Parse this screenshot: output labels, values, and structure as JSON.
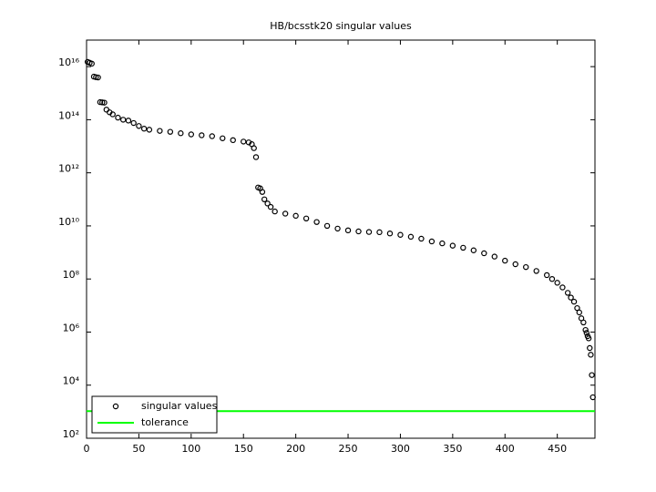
{
  "chart_data": {
    "type": "scatter",
    "title": "HB/bcsstk20 singular values",
    "yscale": "log",
    "xlim": [
      0,
      486
    ],
    "ylim": [
      100,
      1e+17
    ],
    "xticks": [
      0,
      50,
      100,
      150,
      200,
      250,
      300,
      350,
      400,
      450
    ],
    "yticks": [
      {
        "value": 100,
        "label": "10²"
      },
      {
        "value": 10000,
        "label": "10⁴"
      },
      {
        "value": 1000000,
        "label": "10⁶"
      },
      {
        "value": 100000000,
        "label": "10⁸"
      },
      {
        "value": 10000000000,
        "label": "10¹⁰"
      },
      {
        "value": 1000000000000,
        "label": "10¹²"
      },
      {
        "value": 100000000000000,
        "label": "10¹⁴"
      },
      {
        "value": 10000000000000000,
        "label": "10¹⁶"
      }
    ],
    "legend": "lower left",
    "x": [
      1,
      3,
      5,
      7,
      9,
      11,
      13,
      15,
      17,
      19,
      22,
      25,
      30,
      35,
      40,
      45,
      50,
      55,
      60,
      70,
      80,
      90,
      100,
      110,
      120,
      130,
      140,
      150,
      155,
      158,
      160,
      162,
      164,
      166,
      168,
      170,
      173,
      176,
      180,
      190,
      200,
      210,
      220,
      230,
      240,
      250,
      260,
      270,
      280,
      290,
      300,
      310,
      320,
      330,
      340,
      350,
      360,
      370,
      380,
      390,
      400,
      410,
      420,
      430,
      440,
      445,
      450,
      455,
      460,
      463,
      466,
      469,
      471,
      473,
      475,
      477,
      478,
      479,
      480,
      481,
      482,
      483,
      484
    ],
    "series": [
      {
        "name": "singular values",
        "color": "#000000",
        "values": [
          1.5e+16,
          1.4e+16,
          1.3e+16,
          4200000000000000.0,
          4000000000000000.0,
          3900000000000000.0,
          460000000000000.0,
          450000000000000.0,
          440000000000000.0,
          240000000000000.0,
          190000000000000.0,
          160000000000000.0,
          120000000000000.0,
          100000000000000.0,
          93000000000000.0,
          75000000000000.0,
          58000000000000.0,
          46000000000000.0,
          42000000000000.0,
          38000000000000.0,
          35000000000000.0,
          31000000000000.0,
          28000000000000.0,
          26000000000000.0,
          24000000000000.0,
          20000000000000.0,
          17000000000000.0,
          15000000000000.0,
          14000000000000.0,
          12000000000000.0,
          8500000000000.0,
          3900000000000.0,
          280000000000.0,
          260000000000.0,
          190000000000.0,
          100000000000.0,
          70000000000.0,
          52000000000.0,
          35000000000.0,
          29000000000.0,
          24000000000.0,
          19000000000.0,
          14000000000.0,
          10000000000.0,
          7900000000.0,
          6800000000.0,
          6200000000.0,
          5900000000.0,
          5800000000.0,
          5200000000.0,
          4600000000.0,
          3900000000.0,
          3300000000.0,
          2600000000.0,
          2200000000.0,
          1800000000.0,
          1500000000.0,
          1200000000.0,
          930000000.0,
          700000000.0,
          490000000.0,
          360000000.0,
          280000000.0,
          200000000.0,
          140000000.0,
          100000000.0,
          72000000.0,
          48000000.0,
          30000000.0,
          20000000.0,
          14000000.0,
          8000000.0,
          5500000.0,
          3300000.0,
          2300000.0,
          1200000.0,
          930000.0,
          700000.0,
          580000.0,
          250000.0,
          140000.0,
          24000.0,
          3500.0
        ]
      }
    ],
    "hlines": [
      {
        "name": "tolerance",
        "color": "#00ff00",
        "value": 1050
      }
    ]
  }
}
